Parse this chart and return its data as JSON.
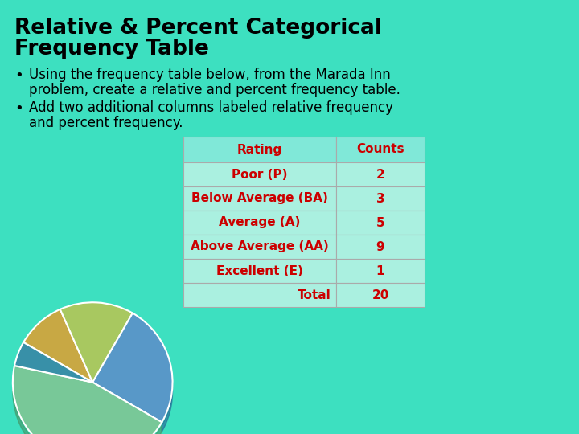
{
  "title_line1": "Relative & Percent Categorical",
  "title_line2": "Frequency Table",
  "bullet1_line1": "Using the frequency table below, from the Marada Inn",
  "bullet1_line2": "problem, create a relative and percent frequency table.",
  "bullet2_line1": "Add two additional columns labeled relative frequency",
  "bullet2_line2": "and percent frequency.",
  "table_headers": [
    "Rating",
    "Counts"
  ],
  "table_rows": [
    [
      "Poor (P)",
      "2"
    ],
    [
      "Below Average (BA)",
      "3"
    ],
    [
      "Average (A)",
      "5"
    ],
    [
      "Above Average (AA)",
      "9"
    ],
    [
      "Excellent (E)",
      "1"
    ],
    [
      "Total",
      "20"
    ]
  ],
  "bg_color": "#3de0c0",
  "table_header_bg": "#80e8d8",
  "table_row_bg": "#aaf0e0",
  "table_text_color": "#cc0000",
  "title_color": "#000000",
  "body_text_color": "#000000",
  "table_border_color": "#aaaaaa",
  "pie_colors": [
    "#c8a844",
    "#a8c860",
    "#5898c8",
    "#78c898",
    "#3890a8"
  ],
  "figsize": [
    7.2,
    5.4
  ],
  "dpi": 100
}
